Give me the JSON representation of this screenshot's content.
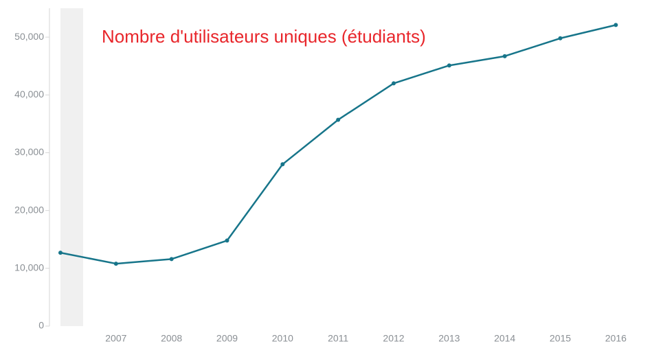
{
  "chart_data": {
    "type": "line",
    "title": "Nombre d'utilisateurs uniques (étudiants)",
    "x": [
      2006,
      2007,
      2008,
      2009,
      2010,
      2011,
      2012,
      2013,
      2014,
      2015,
      2016
    ],
    "series": [
      {
        "name": null,
        "color": "#17758a",
        "values": [
          12700,
          10800,
          11600,
          14800,
          28000,
          35700,
          42000,
          45100,
          46700,
          49800,
          52100
        ]
      }
    ],
    "xlim": [
      2006,
      2016.8
    ],
    "xticks": [
      2007,
      2008,
      2009,
      2010,
      2011,
      2012,
      2013,
      2014,
      2015,
      2016
    ],
    "ylim": [
      0,
      55000
    ],
    "yticks": [
      0,
      {
        "value": 10000,
        "label": "10,000"
      },
      {
        "value": 20000,
        "label": "20,000"
      },
      {
        "value": 30000,
        "label": "30,000"
      },
      {
        "value": 40000,
        "label": "40,000"
      },
      {
        "value": 50000,
        "label": "50,000"
      }
    ],
    "title_color": "#e8262b"
  }
}
